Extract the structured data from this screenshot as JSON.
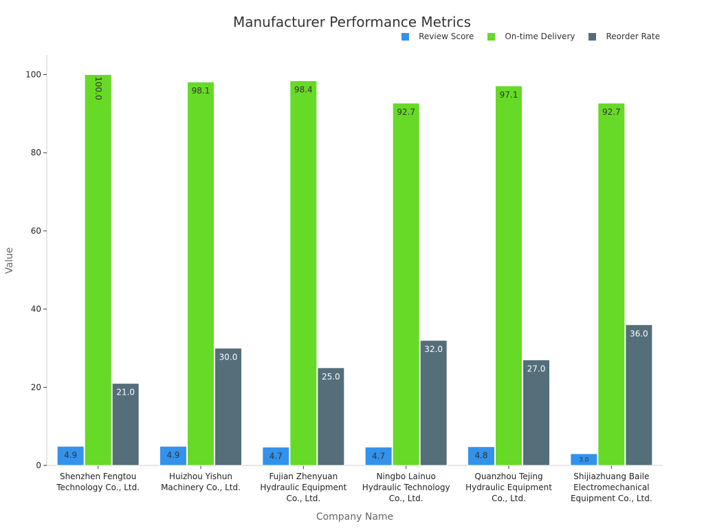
{
  "chart_data": {
    "type": "bar",
    "title": "Manufacturer Performance Metrics",
    "xlabel": "Company Name",
    "ylabel": "Value",
    "ylim": [
      0,
      105
    ],
    "yticks": [
      0,
      20,
      40,
      60,
      80,
      100
    ],
    "legend_position": "top-right",
    "grid": false,
    "categories": [
      [
        "Shenzhen Fengtou",
        "Technology Co., Ltd."
      ],
      [
        "Huizhou Yishun",
        "Machinery Co., Ltd."
      ],
      [
        "Fujian Zhenyuan",
        "Hydraulic Equipment",
        "Co., Ltd."
      ],
      [
        "Ningbo Lainuo",
        "Hydraulic Technology",
        "Co., Ltd."
      ],
      [
        "Quanzhou Tejing",
        "Hydraulic Equipment",
        "Co., Ltd."
      ],
      [
        "Shijiazhuang Baile",
        "Electromechanical",
        "Equipment Co., Ltd."
      ]
    ],
    "series": [
      {
        "name": "Review Score",
        "color": "#3392EC",
        "label_color": "#333333",
        "values": [
          4.9,
          4.9,
          4.7,
          4.7,
          4.8,
          3.0
        ]
      },
      {
        "name": "On-time Delivery",
        "color": "#66DA26",
        "label_color": "#333333",
        "values": [
          100.0,
          98.1,
          98.4,
          92.7,
          97.1,
          92.7
        ]
      },
      {
        "name": "Reorder Rate",
        "color": "#546E7A",
        "label_color": "#ffffff",
        "values": [
          21.0,
          30.0,
          25.0,
          32.0,
          27.0,
          36.0
        ]
      }
    ]
  }
}
